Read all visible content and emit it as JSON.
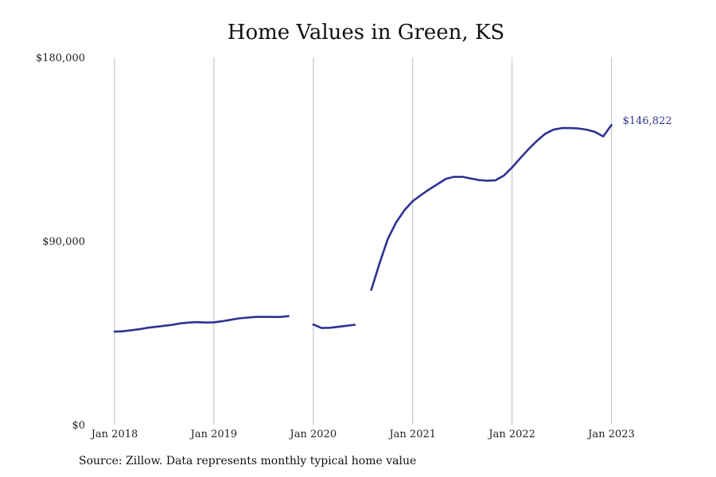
{
  "chart_data": {
    "type": "line",
    "title": "Home Values in Green, KS",
    "y_ticks": [
      "$0",
      "$90,000",
      "$180,000"
    ],
    "ylim": [
      0,
      180000
    ],
    "x_ticks": [
      "Jan 2018",
      "Jan 2019",
      "Jan 2020",
      "Jan 2021",
      "Jan 2022",
      "Jan 2023"
    ],
    "xlim": [
      "2018-01",
      "2023-02"
    ],
    "grid": "vertical",
    "color": "#2e3192",
    "series": [
      {
        "values": [
          [
            "2018-01",
            45500
          ],
          [
            "2018-02",
            45700
          ],
          [
            "2018-03",
            46200
          ],
          [
            "2018-04",
            46700
          ],
          [
            "2018-05",
            47400
          ],
          [
            "2018-06",
            47900
          ],
          [
            "2018-07",
            48400
          ],
          [
            "2018-08",
            48900
          ],
          [
            "2018-09",
            49600
          ],
          [
            "2018-10",
            50000
          ],
          [
            "2018-11",
            50200
          ],
          [
            "2018-12",
            50000
          ],
          [
            "2019-01",
            50100
          ],
          [
            "2019-02",
            50600
          ],
          [
            "2019-03",
            51300
          ],
          [
            "2019-04",
            52000
          ],
          [
            "2019-05",
            52400
          ],
          [
            "2019-06",
            52700
          ],
          [
            "2019-07",
            52800
          ],
          [
            "2019-08",
            52700
          ],
          [
            "2019-09",
            52700
          ],
          [
            "2019-10",
            53100
          ],
          null,
          [
            "2020-01",
            49000
          ],
          [
            "2020-02",
            47300
          ],
          [
            "2020-03",
            47400
          ],
          [
            "2020-04",
            47900
          ],
          [
            "2020-05",
            48400
          ],
          [
            "2020-06",
            48900
          ],
          null,
          [
            "2020-08",
            66000
          ],
          [
            "2020-09",
            79000
          ],
          [
            "2020-10",
            91000
          ],
          [
            "2020-11",
            99000
          ],
          [
            "2020-12",
            105000
          ],
          [
            "2021-01",
            109500
          ],
          [
            "2021-02",
            112500
          ],
          [
            "2021-03",
            115300
          ],
          [
            "2021-04",
            117800
          ],
          [
            "2021-05",
            120400
          ],
          [
            "2021-06",
            121400
          ],
          [
            "2021-07",
            121400
          ],
          [
            "2021-08",
            120600
          ],
          [
            "2021-09",
            119800
          ],
          [
            "2021-10",
            119500
          ],
          [
            "2021-11",
            119700
          ],
          [
            "2021-12",
            122000
          ],
          [
            "2022-01",
            126000
          ],
          [
            "2022-02",
            130600
          ],
          [
            "2022-03",
            135000
          ],
          [
            "2022-04",
            139000
          ],
          [
            "2022-05",
            142500
          ],
          [
            "2022-06",
            144500
          ],
          [
            "2022-07",
            145300
          ],
          [
            "2022-08",
            145300
          ],
          [
            "2022-09",
            145100
          ],
          [
            "2022-10",
            144500
          ],
          [
            "2022-11",
            143400
          ],
          [
            "2022-12",
            141200
          ],
          [
            "2023-01",
            146822
          ]
        ]
      }
    ],
    "end_label": "$146,822",
    "source": "Source: Zillow. Data represents monthly typical home value"
  }
}
